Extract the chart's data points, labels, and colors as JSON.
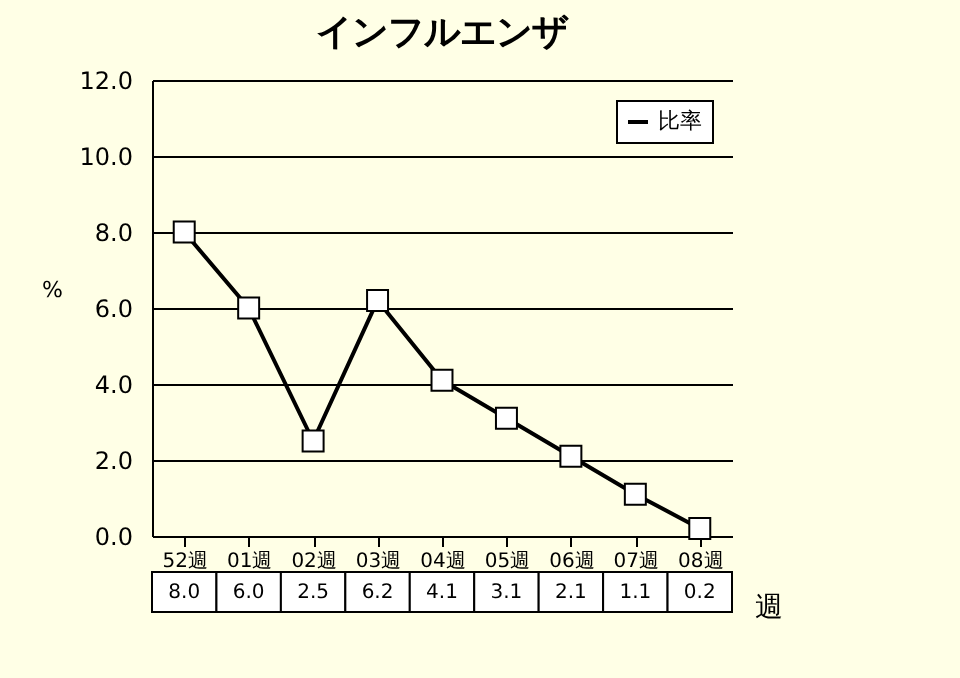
{
  "chart_data": {
    "type": "line",
    "title": "インフルエンザ",
    "xlabel": "週",
    "ylabel": "%",
    "categories": [
      "52週",
      "01週",
      "02週",
      "03週",
      "04週",
      "05週",
      "06週",
      "07週",
      "08週"
    ],
    "series": [
      {
        "name": "比率",
        "color": "#000000",
        "values": [
          8.0,
          6.0,
          2.5,
          6.2,
          4.1,
          3.1,
          2.1,
          1.1,
          0.2
        ],
        "value_labels": [
          "8.0",
          "6.0",
          "2.5",
          "6.2",
          "4.1",
          "3.1",
          "2.1",
          "1.1",
          "0.2"
        ]
      }
    ],
    "ylim": [
      0,
      12
    ],
    "yticks": [
      {
        "value": 0,
        "label": "0.0"
      },
      {
        "value": 2,
        "label": "2.0"
      },
      {
        "value": 4,
        "label": "4.0"
      },
      {
        "value": 6,
        "label": "6.0"
      },
      {
        "value": 8,
        "label": "8.0"
      },
      {
        "value": 10,
        "label": "10.0"
      },
      {
        "value": 12,
        "label": "12.0"
      }
    ],
    "grid": "y",
    "legend": "top right",
    "marker": "square",
    "line_style": "solid"
  }
}
